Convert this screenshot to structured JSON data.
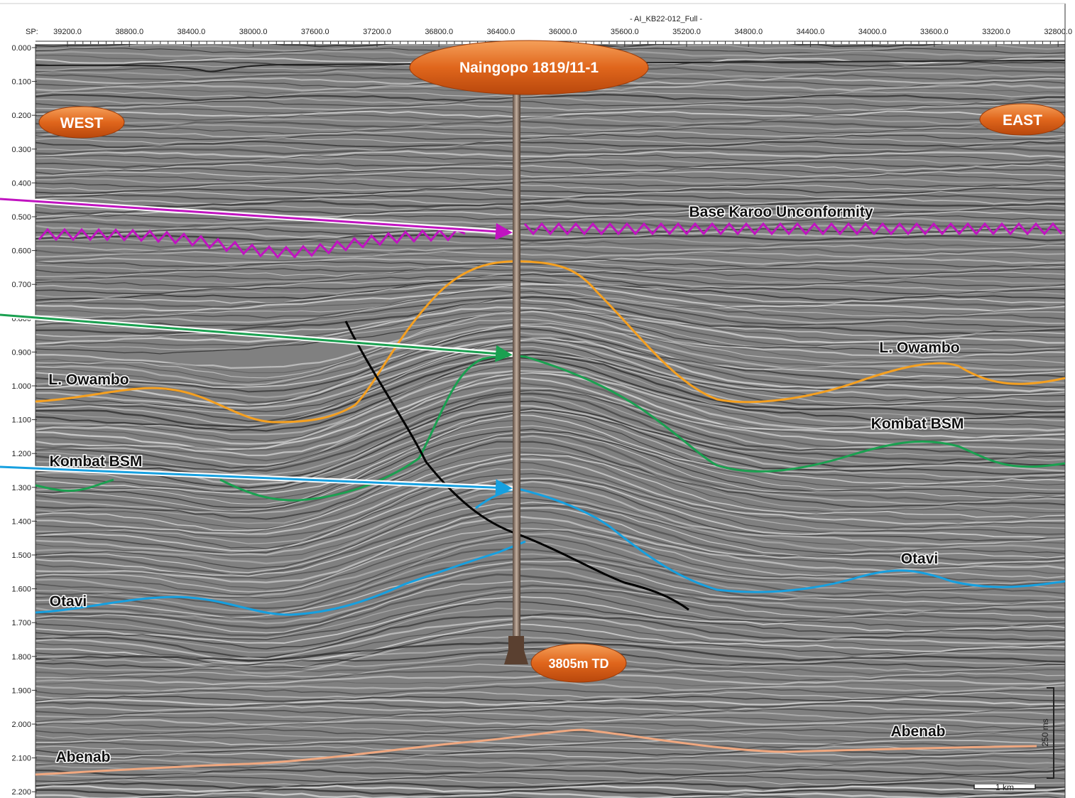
{
  "header": {
    "line_name": "- AI_KB22-012_Full -",
    "sp_label": "SP:",
    "sp_values": [
      "39200.0",
      "38800.0",
      "38400.0",
      "38000.0",
      "37600.0",
      "37200.0",
      "36800.0",
      "36400.0",
      "36000.0",
      "35600.0",
      "35200.0",
      "34800.0",
      "34400.0",
      "34000.0",
      "33600.0",
      "33200.0",
      "32800.0"
    ]
  },
  "time_labels": [
    "0.000",
    "0.100",
    "0.200",
    "0.300",
    "0.400",
    "0.500",
    "0.600",
    "0.700",
    "0.800",
    "0.900",
    "1.000",
    "1.100",
    "1.200",
    "1.300",
    "1.400",
    "1.500",
    "1.600",
    "1.700",
    "1.800",
    "1.900",
    "2.000",
    "2.100",
    "2.200"
  ],
  "well": {
    "name": "Naingopo 1819/11-1",
    "td": "3805m TD"
  },
  "directions": {
    "west": "WEST",
    "east": "EAST"
  },
  "horizon_labels": [
    "Base Karoo Unconformity",
    "L. Owambo",
    "L. Owambo",
    "Kombat BSM",
    "Kombat BSM",
    "Otavi",
    "Otavi",
    "Abenab",
    "Abenab"
  ],
  "scale": {
    "vertical": "250 ms",
    "horizontal": "1 km"
  }
}
